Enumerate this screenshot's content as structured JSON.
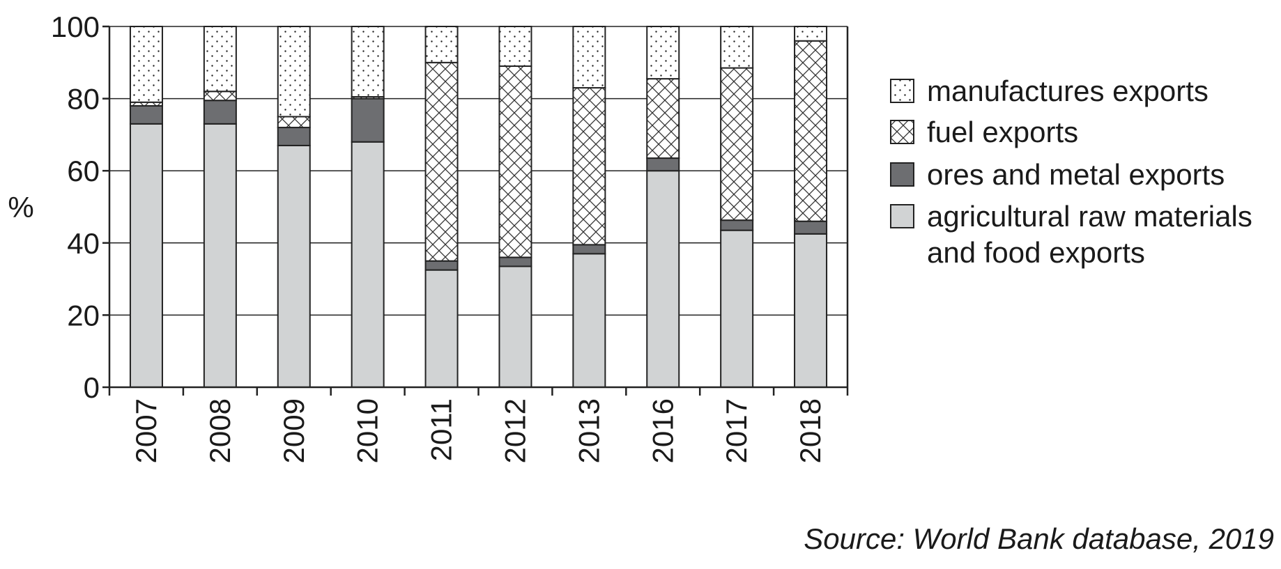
{
  "chart_data": {
    "type": "bar",
    "stacked": true,
    "categories": [
      "2007",
      "2008",
      "2009",
      "2010",
      "2011",
      "2012",
      "2013",
      "2016",
      "2017",
      "2018"
    ],
    "series": [
      {
        "name": "agricultural raw materials and food exports",
        "pattern": "solid-light-grey",
        "color": "#d1d3d4",
        "values": [
          73,
          73,
          67,
          68,
          32.5,
          33.5,
          37,
          60,
          43.5,
          42.5
        ]
      },
      {
        "name": "ores and metal exports",
        "pattern": "solid-dark-grey",
        "color": "#6d6e71",
        "values": [
          5,
          6.5,
          5,
          12,
          2.5,
          2.5,
          2.5,
          3.5,
          2.8,
          3.5
        ]
      },
      {
        "name": "fuel exports",
        "pattern": "cross-hatch",
        "values": [
          1,
          2.5,
          3,
          0.5,
          55,
          53,
          43.5,
          22,
          42.2,
          50
        ]
      },
      {
        "name": "manufactures exports",
        "pattern": "dotted",
        "values": [
          21,
          18,
          25,
          19.5,
          10,
          11,
          17,
          14.5,
          11.5,
          4
        ]
      }
    ],
    "legend": {
      "placement": "right",
      "lines": [
        [
          "manufactures exports"
        ],
        [
          "fuel exports"
        ],
        [
          "ores and metal exports"
        ],
        [
          "agricultural raw materials",
          "and food exports"
        ]
      ]
    },
    "ylabel": "%",
    "xlabel": "",
    "ylim": [
      0,
      100
    ],
    "yticks": [
      0,
      20,
      40,
      60,
      80,
      100
    ],
    "grid": "horizontal",
    "source": "Source: World Bank database, 2019"
  }
}
